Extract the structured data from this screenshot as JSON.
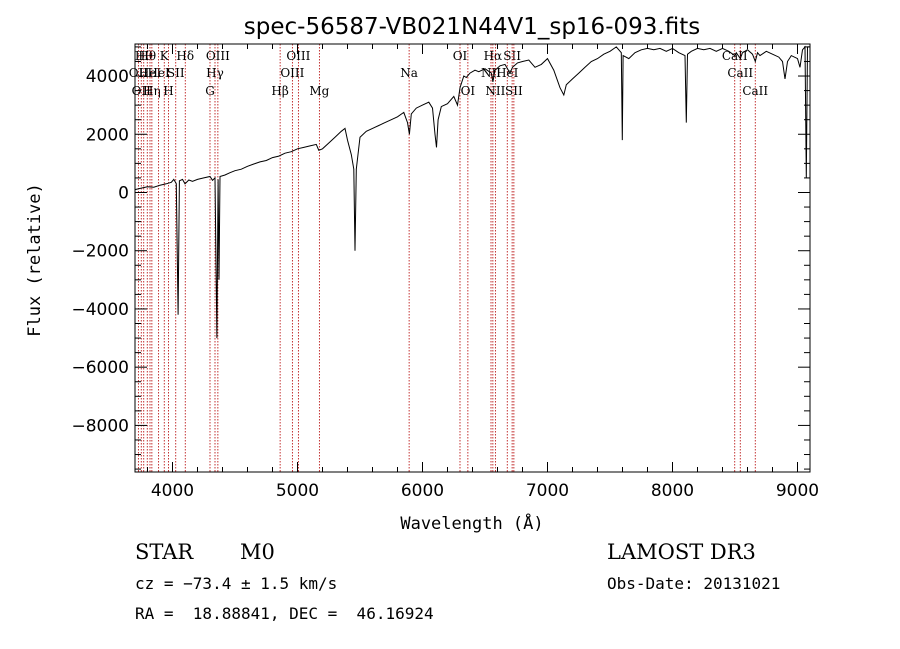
{
  "chart_data": {
    "type": "line",
    "title": "spec-56587-VB021N44V1_sp16-093.fits",
    "xlabel": "Wavelength (Å)",
    "ylabel": "Flux (relative)",
    "xlim": [
      3700,
      9100
    ],
    "ylim": [
      -9600,
      5100
    ],
    "xticks": [
      4000,
      5000,
      6000,
      7000,
      8000,
      9000
    ],
    "xtick_labels": [
      "4000",
      "5000",
      "6000",
      "7000",
      "8000",
      "9000"
    ],
    "yticks": [
      -8000,
      -6000,
      -4000,
      -2000,
      0,
      2000,
      4000
    ],
    "ytick_labels": [
      "−8000",
      "−6000",
      "−4000",
      "−2000",
      "0",
      "2000",
      "4000"
    ],
    "grid": false,
    "series": [
      {
        "color": "#000000",
        "points": [
          [
            3700,
            100
          ],
          [
            3750,
            150
          ],
          [
            3800,
            200
          ],
          [
            3850,
            180
          ],
          [
            3900,
            250
          ],
          [
            3950,
            300
          ],
          [
            3990,
            350
          ],
          [
            4010,
            450
          ],
          [
            4030,
            300
          ],
          [
            4045,
            -4200
          ],
          [
            4055,
            400
          ],
          [
            4080,
            450
          ],
          [
            4100,
            300
          ],
          [
            4130,
            430
          ],
          [
            4160,
            380
          ],
          [
            4200,
            450
          ],
          [
            4250,
            500
          ],
          [
            4300,
            550
          ],
          [
            4320,
            420
          ],
          [
            4340,
            500
          ],
          [
            4355,
            -5000
          ],
          [
            4365,
            450
          ],
          [
            4372,
            -3000
          ],
          [
            4380,
            550
          ],
          [
            4420,
            600
          ],
          [
            4460,
            680
          ],
          [
            4500,
            750
          ],
          [
            4550,
            800
          ],
          [
            4600,
            900
          ],
          [
            4650,
            980
          ],
          [
            4700,
            1050
          ],
          [
            4750,
            1100
          ],
          [
            4800,
            1200
          ],
          [
            4850,
            1250
          ],
          [
            4900,
            1350
          ],
          [
            4950,
            1400
          ],
          [
            5000,
            1500
          ],
          [
            5050,
            1550
          ],
          [
            5100,
            1600
          ],
          [
            5150,
            1650
          ],
          [
            5170,
            1450
          ],
          [
            5200,
            1500
          ],
          [
            5250,
            1700
          ],
          [
            5300,
            1900
          ],
          [
            5350,
            2100
          ],
          [
            5380,
            2200
          ],
          [
            5400,
            1800
          ],
          [
            5430,
            1300
          ],
          [
            5450,
            800
          ],
          [
            5460,
            -2000
          ],
          [
            5470,
            800
          ],
          [
            5500,
            1900
          ],
          [
            5550,
            2100
          ],
          [
            5600,
            2200
          ],
          [
            5650,
            2300
          ],
          [
            5700,
            2400
          ],
          [
            5750,
            2500
          ],
          [
            5800,
            2600
          ],
          [
            5850,
            2750
          ],
          [
            5880,
            2400
          ],
          [
            5895,
            2000
          ],
          [
            5910,
            2700
          ],
          [
            5950,
            2900
          ],
          [
            6000,
            3000
          ],
          [
            6050,
            3100
          ],
          [
            6080,
            2900
          ],
          [
            6100,
            2000
          ],
          [
            6112,
            1550
          ],
          [
            6125,
            2500
          ],
          [
            6150,
            2950
          ],
          [
            6200,
            3050
          ],
          [
            6250,
            3300
          ],
          [
            6280,
            3000
          ],
          [
            6300,
            3600
          ],
          [
            6330,
            4000
          ],
          [
            6350,
            3950
          ],
          [
            6380,
            4100
          ],
          [
            6420,
            4200
          ],
          [
            6450,
            4150
          ],
          [
            6500,
            4250
          ],
          [
            6550,
            4100
          ],
          [
            6563,
            3800
          ],
          [
            6580,
            4200
          ],
          [
            6620,
            4350
          ],
          [
            6660,
            4400
          ],
          [
            6700,
            4100
          ],
          [
            6720,
            4300
          ],
          [
            6760,
            4450
          ],
          [
            6800,
            4500
          ],
          [
            6850,
            4550
          ],
          [
            6900,
            4300
          ],
          [
            6950,
            4400
          ],
          [
            7000,
            4600
          ],
          [
            7050,
            4200
          ],
          [
            7100,
            3600
          ],
          [
            7130,
            3350
          ],
          [
            7150,
            3700
          ],
          [
            7200,
            3900
          ],
          [
            7250,
            4100
          ],
          [
            7300,
            4300
          ],
          [
            7350,
            4500
          ],
          [
            7400,
            4600
          ],
          [
            7450,
            4750
          ],
          [
            7500,
            4850
          ],
          [
            7550,
            5000
          ],
          [
            7590,
            4800
          ],
          [
            7598,
            1800
          ],
          [
            7605,
            4700
          ],
          [
            7650,
            4600
          ],
          [
            7700,
            4800
          ],
          [
            7750,
            4900
          ],
          [
            7800,
            4950
          ],
          [
            7850,
            4900
          ],
          [
            7900,
            4950
          ],
          [
            7950,
            4850
          ],
          [
            8000,
            4950
          ],
          [
            8050,
            4800
          ],
          [
            8100,
            4700
          ],
          [
            8110,
            2400
          ],
          [
            8120,
            4750
          ],
          [
            8150,
            4850
          ],
          [
            8200,
            4950
          ],
          [
            8250,
            4900
          ],
          [
            8300,
            4950
          ],
          [
            8350,
            4850
          ],
          [
            8400,
            4950
          ],
          [
            8450,
            4850
          ],
          [
            8498,
            4700
          ],
          [
            8510,
            4800
          ],
          [
            8542,
            4600
          ],
          [
            8560,
            4800
          ],
          [
            8600,
            4900
          ],
          [
            8640,
            4750
          ],
          [
            8662,
            4500
          ],
          [
            8680,
            4800
          ],
          [
            8700,
            4700
          ],
          [
            8750,
            4850
          ],
          [
            8800,
            4750
          ],
          [
            8850,
            4650
          ],
          [
            8880,
            4500
          ],
          [
            8900,
            3900
          ],
          [
            8920,
            4500
          ],
          [
            8950,
            4700
          ],
          [
            9000,
            4600
          ],
          [
            9020,
            4300
          ],
          [
            9040,
            4900
          ],
          [
            9060,
            5000
          ],
          [
            9070,
            500
          ],
          [
            9080,
            5000
          ],
          [
            9100,
            5000
          ]
        ]
      }
    ],
    "line_markers": [
      {
        "x": 3727,
        "label": "OII",
        "row": 2
      },
      {
        "x": 3750,
        "label": "OII",
        "row": 3
      },
      {
        "x": 3770,
        "label": "Hθ",
        "row": 1
      },
      {
        "x": 3798,
        "label": "Hθ",
        "row": 1
      },
      {
        "x": 3820,
        "label": "HeI",
        "row": 2
      },
      {
        "x": 3835,
        "label": "Hη",
        "row": 3
      },
      {
        "x": 3889,
        "label": "HeI",
        "row": 2
      },
      {
        "x": 3934,
        "label": "K",
        "row": 1
      },
      {
        "x": 3968,
        "label": "H",
        "row": 3
      },
      {
        "x": 4026,
        "label": "SII",
        "row": 2
      },
      {
        "x": 4102,
        "label": "Hδ",
        "row": 1
      },
      {
        "x": 4300,
        "label": "G",
        "row": 3
      },
      {
        "x": 4340,
        "label": "Hγ",
        "row": 2
      },
      {
        "x": 4363,
        "label": "OIII",
        "row": 1
      },
      {
        "x": 4861,
        "label": "Hβ",
        "row": 3
      },
      {
        "x": 4959,
        "label": "OIII",
        "row": 2
      },
      {
        "x": 5007,
        "label": "OIII",
        "row": 1
      },
      {
        "x": 5175,
        "label": "Mg",
        "row": 3
      },
      {
        "x": 5893,
        "label": "Na",
        "row": 2
      },
      {
        "x": 6300,
        "label": "OI",
        "row": 1
      },
      {
        "x": 6363,
        "label": "OI",
        "row": 3
      },
      {
        "x": 6548,
        "label": "NII",
        "row": 2
      },
      {
        "x": 6563,
        "label": "Hα",
        "row": 1
      },
      {
        "x": 6583,
        "label": "NII",
        "row": 3
      },
      {
        "x": 6678,
        "label": "HeI",
        "row": 2
      },
      {
        "x": 6717,
        "label": "SII",
        "row": 1
      },
      {
        "x": 6731,
        "label": "SII",
        "row": 3
      },
      {
        "x": 8498,
        "label": "CaII",
        "row": 1
      },
      {
        "x": 8542,
        "label": "CaII",
        "row": 2
      },
      {
        "x": 8662,
        "label": "CaII",
        "row": 3
      }
    ]
  },
  "info": {
    "class": "STAR",
    "subclass": "M0",
    "survey": "LAMOST DR3",
    "cz": "cz = −73.4 ± 1.5 km/s",
    "obs_date": "Obs-Date: 20131021",
    "radec": "RA =  18.88841, DEC =  46.16924"
  }
}
